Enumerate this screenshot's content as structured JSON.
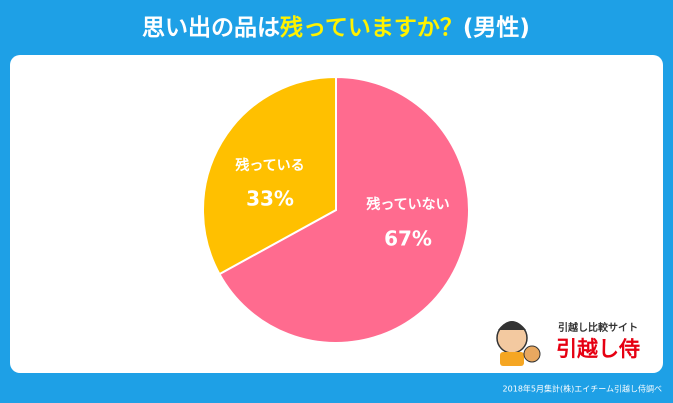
{
  "title_parts": [
    "思い出の品は",
    "残っていますか？",
    "(男性)"
  ],
  "chart_data": {
    "type": "pie",
    "categories": [
      "残っていない",
      "残っている"
    ],
    "values": [
      67,
      33
    ],
    "value_labels": [
      "67%",
      "33%"
    ],
    "colors": [
      "#ff6b8f",
      "#ffc000"
    ]
  },
  "logo": {
    "tagline": "引越し比較サイト",
    "name": "引越し侍"
  },
  "source": "2018年5月集計(株)エイチーム引越し侍調べ"
}
